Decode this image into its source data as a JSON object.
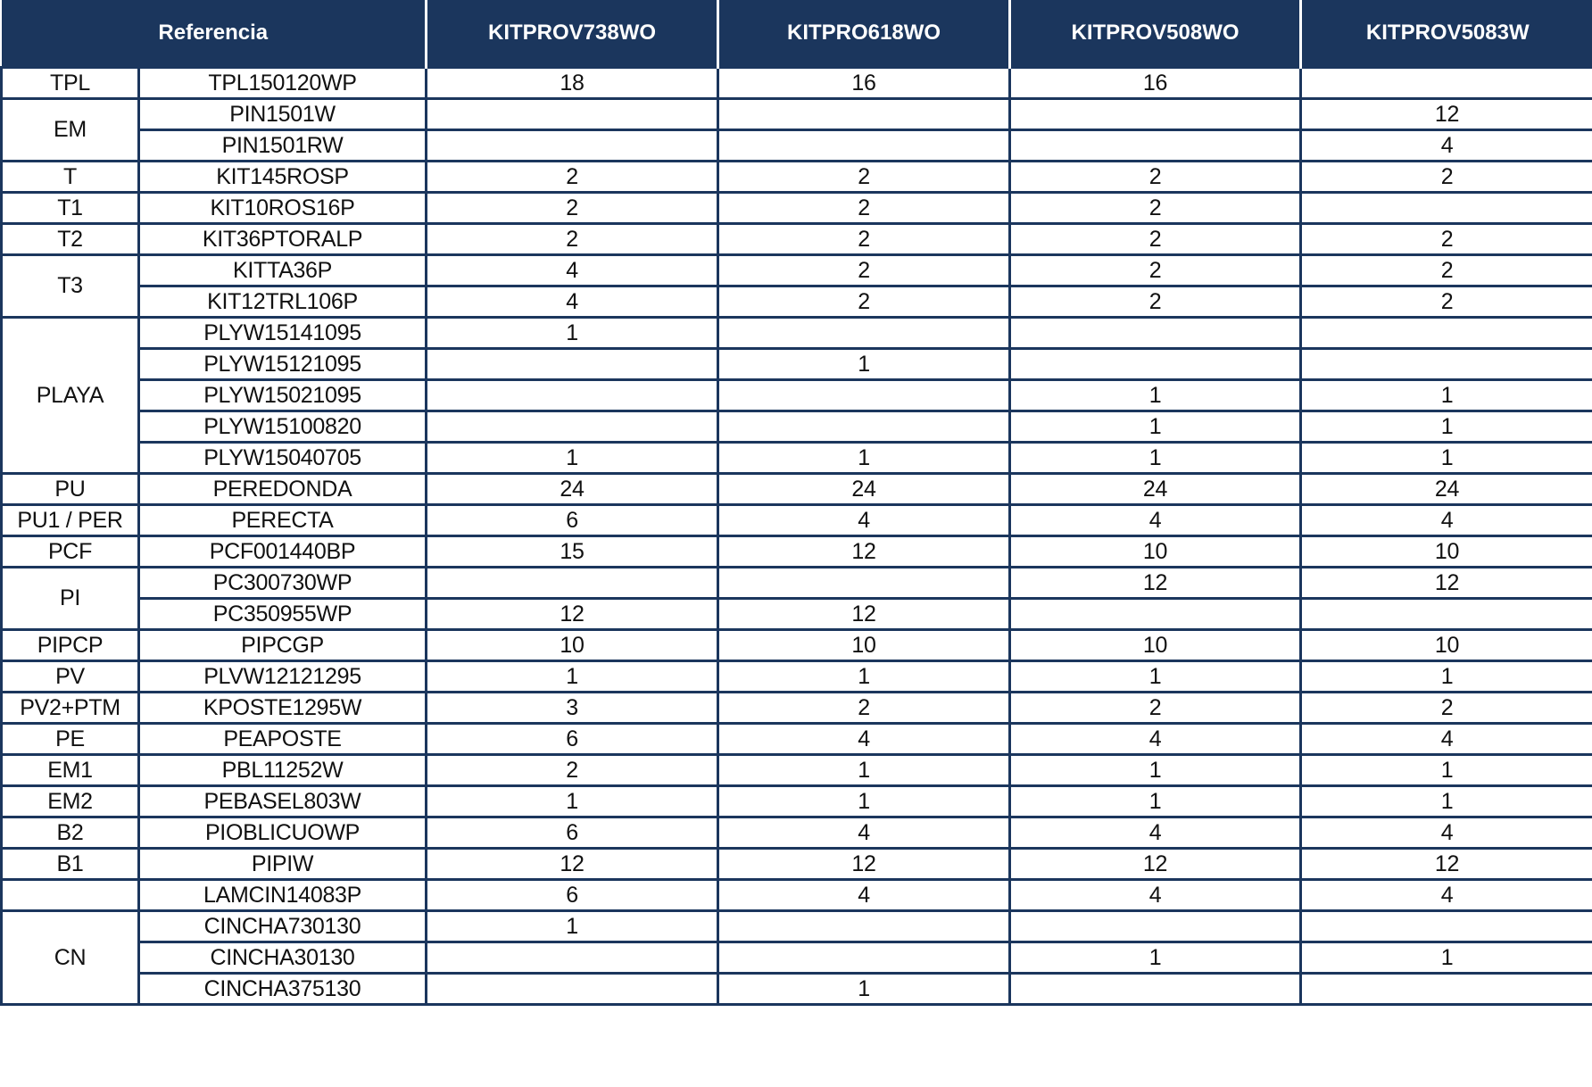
{
  "header": {
    "reference_label": "Referencia",
    "kits": [
      "KITPROV738WO",
      "KITPRO618WO",
      "KITPROV508WO",
      "KITPROV5083W"
    ]
  },
  "groups": [
    {
      "label": "TPL",
      "rows": [
        {
          "ref": "TPL150120WP",
          "values": [
            "18",
            "16",
            "16",
            ""
          ]
        }
      ]
    },
    {
      "label": "EM",
      "rows": [
        {
          "ref": "PIN1501W",
          "values": [
            "",
            "",
            "",
            "12"
          ]
        },
        {
          "ref": "PIN1501RW",
          "values": [
            "",
            "",
            "",
            "4"
          ]
        }
      ]
    },
    {
      "label": "T",
      "rows": [
        {
          "ref": "KIT145ROSP",
          "values": [
            "2",
            "2",
            "2",
            "2"
          ]
        }
      ]
    },
    {
      "label": "T1",
      "rows": [
        {
          "ref": "KIT10ROS16P",
          "values": [
            "2",
            "2",
            "2",
            ""
          ]
        }
      ]
    },
    {
      "label": "T2",
      "rows": [
        {
          "ref": "KIT36PTORALP",
          "values": [
            "2",
            "2",
            "2",
            "2"
          ]
        }
      ]
    },
    {
      "label": "T3",
      "rows": [
        {
          "ref": "KITTA36P",
          "values": [
            "4",
            "2",
            "2",
            "2"
          ]
        },
        {
          "ref": "KIT12TRL106P",
          "values": [
            "4",
            "2",
            "2",
            "2"
          ]
        }
      ]
    },
    {
      "label": "PLAYA",
      "rows": [
        {
          "ref": "PLYW15141095",
          "values": [
            "1",
            "",
            "",
            ""
          ]
        },
        {
          "ref": "PLYW15121095",
          "values": [
            "",
            "1",
            "",
            ""
          ]
        },
        {
          "ref": "PLYW15021095",
          "values": [
            "",
            "",
            "1",
            "1"
          ]
        },
        {
          "ref": "PLYW15100820",
          "values": [
            "",
            "",
            "1",
            "1"
          ]
        },
        {
          "ref": "PLYW15040705",
          "values": [
            "1",
            "1",
            "1",
            "1"
          ]
        }
      ]
    },
    {
      "label": "PU",
      "rows": [
        {
          "ref": "PEREDONDA",
          "values": [
            "24",
            "24",
            "24",
            "24"
          ]
        }
      ]
    },
    {
      "label": "PU1 / PER",
      "rows": [
        {
          "ref": "PERECTA",
          "values": [
            "6",
            "4",
            "4",
            "4"
          ]
        }
      ]
    },
    {
      "label": "PCF",
      "rows": [
        {
          "ref": "PCF001440BP",
          "values": [
            "15",
            "12",
            "10",
            "10"
          ]
        }
      ]
    },
    {
      "label": "PI",
      "rows": [
        {
          "ref": "PC300730WP",
          "values": [
            "",
            "",
            "12",
            "12"
          ]
        },
        {
          "ref": "PC350955WP",
          "values": [
            "12",
            "12",
            "",
            ""
          ]
        }
      ]
    },
    {
      "label": "PIPCP",
      "rows": [
        {
          "ref": "PIPCGP",
          "values": [
            "10",
            "10",
            "10",
            "10"
          ]
        }
      ]
    },
    {
      "label": "PV",
      "rows": [
        {
          "ref": "PLVW12121295",
          "values": [
            "1",
            "1",
            "1",
            "1"
          ]
        }
      ]
    },
    {
      "label": "PV2+PTM",
      "rows": [
        {
          "ref": "KPOSTE1295W",
          "values": [
            "3",
            "2",
            "2",
            "2"
          ]
        }
      ]
    },
    {
      "label": "PE",
      "rows": [
        {
          "ref": "PEAPOSTE",
          "values": [
            "6",
            "4",
            "4",
            "4"
          ]
        }
      ]
    },
    {
      "label": "EM1",
      "rows": [
        {
          "ref": "PBL11252W",
          "values": [
            "2",
            "1",
            "1",
            "1"
          ]
        }
      ]
    },
    {
      "label": "EM2",
      "rows": [
        {
          "ref": "PEBASEL803W",
          "values": [
            "1",
            "1",
            "1",
            "1"
          ]
        }
      ]
    },
    {
      "label": "B2",
      "rows": [
        {
          "ref": "PIOBLICUOWP",
          "values": [
            "6",
            "4",
            "4",
            "4"
          ]
        }
      ]
    },
    {
      "label": "B1",
      "rows": [
        {
          "ref": "PIPIW",
          "values": [
            "12",
            "12",
            "12",
            "12"
          ]
        }
      ]
    },
    {
      "label": "",
      "rows": [
        {
          "ref": "LAMCIN14083P",
          "values": [
            "6",
            "4",
            "4",
            "4"
          ]
        }
      ]
    },
    {
      "label": "CN",
      "rows": [
        {
          "ref": "CINCHA730130",
          "values": [
            "1",
            "",
            "",
            ""
          ]
        },
        {
          "ref": "CINCHA30130",
          "values": [
            "",
            "",
            "1",
            "1"
          ]
        },
        {
          "ref": "CINCHA375130",
          "values": [
            "",
            "1",
            "",
            ""
          ]
        }
      ]
    }
  ],
  "colors": {
    "header_bg": "#1b365d",
    "border": "#1b365d"
  }
}
